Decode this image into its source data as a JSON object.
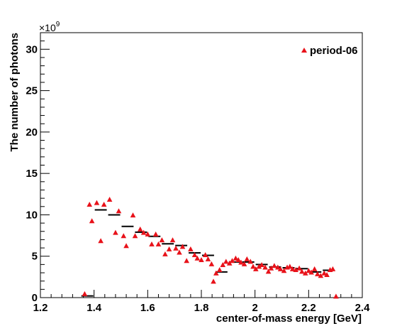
{
  "chart_data": {
    "type": "scatter",
    "xlabel": "center-of-mass energy [GeV]",
    "ylabel": "The number of photons",
    "y_multiplier_label": "×10",
    "y_multiplier_exp": "9",
    "xlim": [
      1.2,
      2.4
    ],
    "ylim": [
      0,
      32
    ],
    "x_ticks": [
      1.2,
      1.4,
      1.6,
      1.8,
      2.0,
      2.2,
      2.4
    ],
    "x_tick_labels": [
      "1.2",
      "1.4",
      "1.6",
      "1.8",
      "2",
      "2.2",
      "2.4"
    ],
    "y_ticks": [
      0,
      5,
      10,
      15,
      20,
      25,
      30
    ],
    "y_tick_labels": [
      "0",
      "5",
      "10",
      "15",
      "20",
      "25",
      "30"
    ],
    "grid": false,
    "legend_position": "top-right",
    "series": [
      {
        "name": "period-06",
        "marker": "triangle",
        "color": "#e8121a",
        "points": [
          [
            1.365,
            0.4
          ],
          [
            1.383,
            11.2
          ],
          [
            1.392,
            9.2
          ],
          [
            1.41,
            11.4
          ],
          [
            1.425,
            6.8
          ],
          [
            1.437,
            11.2
          ],
          [
            1.458,
            11.8
          ],
          [
            1.48,
            7.8
          ],
          [
            1.492,
            10.4
          ],
          [
            1.51,
            7.4
          ],
          [
            1.52,
            6.2
          ],
          [
            1.545,
            9.9
          ],
          [
            1.553,
            7.4
          ],
          [
            1.572,
            8.2
          ],
          [
            1.585,
            7.8
          ],
          [
            1.6,
            7.6
          ],
          [
            1.615,
            6.4
          ],
          [
            1.63,
            7.6
          ],
          [
            1.64,
            6.4
          ],
          [
            1.653,
            6.9
          ],
          [
            1.665,
            5.2
          ],
          [
            1.68,
            5.8
          ],
          [
            1.693,
            6.9
          ],
          [
            1.705,
            5.9
          ],
          [
            1.718,
            5.4
          ],
          [
            1.73,
            6.1
          ],
          [
            1.745,
            4.4
          ],
          [
            1.76,
            5.8
          ],
          [
            1.775,
            5.1
          ],
          [
            1.785,
            4.7
          ],
          [
            1.8,
            4.5
          ],
          [
            1.815,
            5.1
          ],
          [
            1.825,
            4.6
          ],
          [
            1.838,
            4.0
          ],
          [
            1.845,
            1.9
          ],
          [
            1.855,
            2.9
          ],
          [
            1.868,
            3.3
          ],
          [
            1.88,
            3.9
          ],
          [
            1.892,
            4.3
          ],
          [
            1.905,
            4.1
          ],
          [
            1.915,
            4.4
          ],
          [
            1.928,
            4.7
          ],
          [
            1.938,
            4.5
          ],
          [
            1.948,
            4.2
          ],
          [
            1.96,
            4.0
          ],
          [
            1.97,
            4.6
          ],
          [
            1.983,
            4.3
          ],
          [
            1.993,
            3.7
          ],
          [
            2.003,
            3.4
          ],
          [
            2.015,
            3.7
          ],
          [
            2.025,
            3.9
          ],
          [
            2.038,
            3.6
          ],
          [
            2.05,
            3.1
          ],
          [
            2.06,
            3.5
          ],
          [
            2.072,
            3.8
          ],
          [
            2.085,
            3.6
          ],
          [
            2.095,
            3.4
          ],
          [
            2.108,
            3.2
          ],
          [
            2.12,
            3.6
          ],
          [
            2.13,
            3.7
          ],
          [
            2.14,
            3.4
          ],
          [
            2.152,
            3.3
          ],
          [
            2.165,
            3.5
          ],
          [
            2.175,
            3.1
          ],
          [
            2.188,
            2.9
          ],
          [
            2.2,
            3.2
          ],
          [
            2.21,
            3.0
          ],
          [
            2.222,
            3.4
          ],
          [
            2.233,
            2.8
          ],
          [
            2.245,
            2.6
          ],
          [
            2.258,
            2.9
          ],
          [
            2.268,
            2.7
          ],
          [
            2.28,
            3.3
          ],
          [
            2.29,
            3.4
          ],
          [
            2.302,
            0.1
          ]
        ]
      },
      {
        "marker": "hline",
        "color": "#000000",
        "segments": [
          [
            1.35,
            1.4,
            0.2
          ],
          [
            1.4,
            1.45,
            10.6
          ],
          [
            1.45,
            1.5,
            10.0
          ],
          [
            1.5,
            1.55,
            8.6
          ],
          [
            1.55,
            1.6,
            7.9
          ],
          [
            1.6,
            1.65,
            7.4
          ],
          [
            1.65,
            1.7,
            6.5
          ],
          [
            1.7,
            1.75,
            6.3
          ],
          [
            1.75,
            1.8,
            5.4
          ],
          [
            1.8,
            1.85,
            5.1
          ],
          [
            1.85,
            1.9,
            3.1
          ],
          [
            1.9,
            1.95,
            4.3
          ],
          [
            1.95,
            2.0,
            4.3
          ],
          [
            2.0,
            2.05,
            4.0
          ],
          [
            2.05,
            2.1,
            3.7
          ],
          [
            2.1,
            2.15,
            3.6
          ],
          [
            2.15,
            2.2,
            3.5
          ],
          [
            2.2,
            2.25,
            3.1
          ],
          [
            2.25,
            2.3,
            3.3
          ]
        ]
      }
    ]
  }
}
